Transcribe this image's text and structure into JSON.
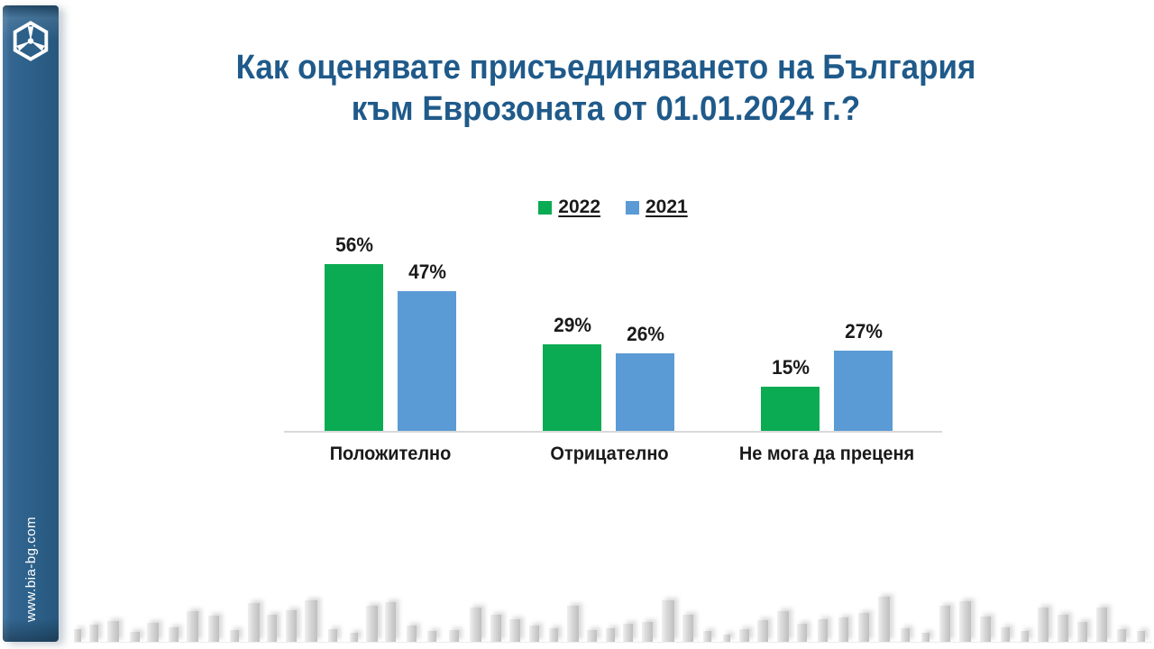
{
  "sidebar": {
    "website": "www.bia-bg.com",
    "color": "#2c6089",
    "logo": "bia-hexagon-triskelion-logo"
  },
  "title": {
    "line1": "Как оценявате присъединяването на България",
    "line2": "към Еврозоната от 01.01.2024 г.?",
    "color": "#1f5a8a"
  },
  "chart_data": {
    "type": "bar",
    "categories": [
      "Положително",
      "Отрицателно",
      "Не мога да преценя"
    ],
    "series": [
      {
        "name": "2022",
        "color": "#0aab52",
        "values": [
          56,
          29,
          15
        ]
      },
      {
        "name": "2021",
        "color": "#5b9bd5",
        "values": [
          47,
          26,
          27
        ]
      }
    ],
    "value_suffix": "%",
    "data_labels": [
      [
        "56%",
        "29%",
        "15%"
      ],
      [
        "47%",
        "26%",
        "27%"
      ]
    ],
    "ylim": [
      0,
      60
    ],
    "grid": false,
    "legend_position": "top-center",
    "axis_line_color": "#d9d9d9",
    "label_color": "#1a1a1a"
  },
  "decoration": {
    "skyline_color": "#cfcfcf",
    "skyline_bars": [
      [
        8,
        14,
        0
      ],
      [
        10,
        19,
        9
      ],
      [
        13,
        23,
        10
      ],
      [
        11,
        11,
        12
      ],
      [
        13,
        21,
        8
      ],
      [
        11,
        16,
        11
      ],
      [
        13,
        34,
        9
      ],
      [
        12,
        29,
        11
      ],
      [
        10,
        13,
        12
      ],
      [
        13,
        43,
        10
      ],
      [
        11,
        30,
        8
      ],
      [
        12,
        35,
        10
      ],
      [
        14,
        46,
        9
      ],
      [
        10,
        14,
        12
      ],
      [
        9,
        10,
        14
      ],
      [
        13,
        40,
        9
      ],
      [
        12,
        44,
        8
      ],
      [
        11,
        18,
        12
      ],
      [
        10,
        12,
        12
      ],
      [
        11,
        13,
        14
      ],
      [
        13,
        38,
        12
      ],
      [
        12,
        30,
        10
      ],
      [
        12,
        25,
        9
      ],
      [
        11,
        18,
        10
      ],
      [
        10,
        15,
        11
      ],
      [
        13,
        40,
        10
      ],
      [
        11,
        13,
        9
      ],
      [
        10,
        15,
        10
      ],
      [
        11,
        20,
        9
      ],
      [
        12,
        22,
        10
      ],
      [
        14,
        46,
        10
      ],
      [
        12,
        30,
        9
      ],
      [
        9,
        12,
        11
      ],
      [
        8,
        8,
        13
      ],
      [
        11,
        14,
        10
      ],
      [
        12,
        24,
        9
      ],
      [
        13,
        34,
        10
      ],
      [
        11,
        20,
        9
      ],
      [
        11,
        25,
        12
      ],
      [
        11,
        27,
        12
      ],
      [
        12,
        32,
        11
      ],
      [
        13,
        50,
        10
      ],
      [
        10,
        15,
        12
      ],
      [
        9,
        10,
        13
      ],
      [
        12,
        40,
        11
      ],
      [
        13,
        45,
        10
      ],
      [
        12,
        28,
        10
      ],
      [
        10,
        16,
        11
      ],
      [
        9,
        12,
        12
      ],
      [
        12,
        38,
        10
      ],
      [
        12,
        30,
        10
      ],
      [
        11,
        22,
        10
      ],
      [
        12,
        38,
        10
      ],
      [
        10,
        14,
        11
      ],
      [
        9,
        12,
        12
      ],
      [
        10,
        18,
        11
      ]
    ]
  }
}
